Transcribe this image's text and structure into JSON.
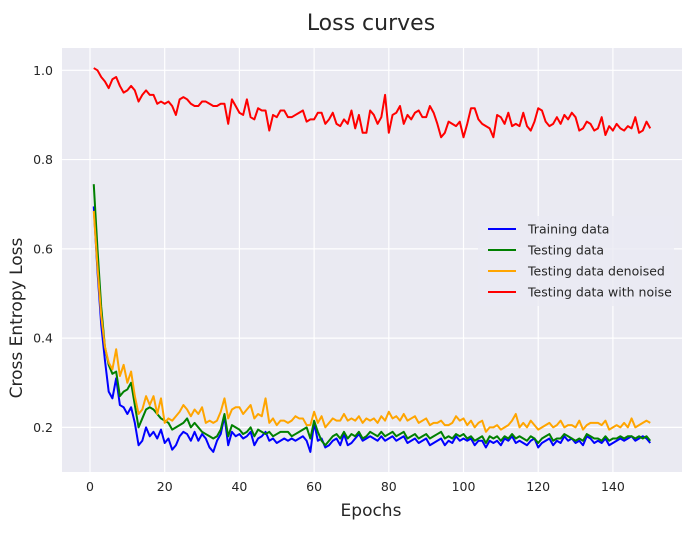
{
  "chart_data": {
    "type": "line",
    "title": "Loss curves",
    "xlabel": "Epochs",
    "ylabel": "Cross Entropy Loss",
    "xlim": [
      -7.5,
      158.5
    ],
    "ylim": [
      0.1,
      1.05
    ],
    "xticks": [
      0,
      20,
      40,
      60,
      80,
      100,
      120,
      140
    ],
    "yticks": [
      0.2,
      0.4,
      0.6,
      0.8,
      1.0
    ],
    "xtick_labels": [
      "0",
      "20",
      "40",
      "60",
      "80",
      "100",
      "120",
      "140"
    ],
    "ytick_labels": [
      "0.2",
      "0.4",
      "0.6",
      "0.8",
      "1.0"
    ],
    "grid": true,
    "legend_position": "center-right",
    "style": {
      "plot_bg": "#eaeaf2",
      "grid_color": "#ffffff"
    },
    "series": [
      {
        "name": "Training data",
        "color": "#0000ff",
        "x_start": 1,
        "x_step": 1,
        "values": [
          0.695,
          0.55,
          0.43,
          0.35,
          0.28,
          0.265,
          0.31,
          0.25,
          0.245,
          0.23,
          0.245,
          0.21,
          0.16,
          0.17,
          0.2,
          0.18,
          0.19,
          0.175,
          0.195,
          0.165,
          0.175,
          0.15,
          0.16,
          0.18,
          0.19,
          0.185,
          0.17,
          0.19,
          0.17,
          0.185,
          0.175,
          0.155,
          0.145,
          0.17,
          0.185,
          0.225,
          0.16,
          0.19,
          0.18,
          0.185,
          0.175,
          0.18,
          0.19,
          0.16,
          0.175,
          0.18,
          0.19,
          0.17,
          0.175,
          0.165,
          0.17,
          0.175,
          0.17,
          0.175,
          0.17,
          0.175,
          0.18,
          0.17,
          0.145,
          0.21,
          0.17,
          0.175,
          0.155,
          0.16,
          0.17,
          0.175,
          0.16,
          0.185,
          0.16,
          0.165,
          0.175,
          0.185,
          0.17,
          0.175,
          0.18,
          0.175,
          0.17,
          0.18,
          0.17,
          0.175,
          0.18,
          0.17,
          0.175,
          0.18,
          0.165,
          0.17,
          0.175,
          0.165,
          0.17,
          0.175,
          0.16,
          0.165,
          0.17,
          0.175,
          0.16,
          0.17,
          0.165,
          0.18,
          0.17,
          0.175,
          0.17,
          0.175,
          0.16,
          0.17,
          0.17,
          0.155,
          0.17,
          0.165,
          0.17,
          0.16,
          0.175,
          0.17,
          0.18,
          0.165,
          0.17,
          0.165,
          0.16,
          0.17,
          0.175,
          0.155,
          0.165,
          0.17,
          0.175,
          0.16,
          0.17,
          0.165,
          0.18,
          0.17,
          0.175,
          0.165,
          0.17,
          0.16,
          0.18,
          0.175,
          0.165,
          0.17,
          0.165,
          0.175,
          0.16,
          0.165,
          0.17,
          0.175,
          0.17,
          0.175,
          0.18,
          0.17,
          0.175,
          0.18,
          0.175,
          0.165
        ]
      },
      {
        "name": "Testing data",
        "color": "#008000",
        "x_start": 1,
        "x_step": 1,
        "values": [
          0.745,
          0.6,
          0.47,
          0.38,
          0.34,
          0.32,
          0.325,
          0.27,
          0.28,
          0.285,
          0.3,
          0.25,
          0.2,
          0.22,
          0.24,
          0.245,
          0.24,
          0.23,
          0.22,
          0.215,
          0.21,
          0.195,
          0.2,
          0.205,
          0.21,
          0.22,
          0.2,
          0.21,
          0.2,
          0.19,
          0.185,
          0.18,
          0.175,
          0.18,
          0.195,
          0.23,
          0.18,
          0.205,
          0.2,
          0.195,
          0.185,
          0.19,
          0.2,
          0.18,
          0.195,
          0.19,
          0.185,
          0.19,
          0.18,
          0.185,
          0.19,
          0.19,
          0.19,
          0.18,
          0.185,
          0.19,
          0.195,
          0.2,
          0.175,
          0.215,
          0.19,
          0.17,
          0.16,
          0.17,
          0.18,
          0.185,
          0.175,
          0.19,
          0.175,
          0.185,
          0.18,
          0.19,
          0.175,
          0.18,
          0.19,
          0.185,
          0.18,
          0.19,
          0.18,
          0.185,
          0.19,
          0.18,
          0.185,
          0.19,
          0.175,
          0.18,
          0.185,
          0.175,
          0.18,
          0.185,
          0.175,
          0.18,
          0.185,
          0.19,
          0.175,
          0.18,
          0.175,
          0.185,
          0.18,
          0.185,
          0.175,
          0.18,
          0.17,
          0.175,
          0.18,
          0.165,
          0.18,
          0.175,
          0.18,
          0.17,
          0.18,
          0.175,
          0.185,
          0.175,
          0.18,
          0.175,
          0.17,
          0.18,
          0.175,
          0.165,
          0.175,
          0.18,
          0.185,
          0.17,
          0.175,
          0.175,
          0.185,
          0.18,
          0.175,
          0.17,
          0.175,
          0.17,
          0.185,
          0.18,
          0.175,
          0.175,
          0.17,
          0.18,
          0.17,
          0.175,
          0.175,
          0.18,
          0.175,
          0.18,
          0.18,
          0.175,
          0.18,
          0.175,
          0.18,
          0.17
        ]
      },
      {
        "name": "Testing data denoised",
        "color": "#ffa500",
        "x_start": 1,
        "x_step": 1,
        "values": [
          0.685,
          0.56,
          0.45,
          0.38,
          0.345,
          0.33,
          0.375,
          0.315,
          0.34,
          0.3,
          0.325,
          0.27,
          0.23,
          0.24,
          0.27,
          0.25,
          0.27,
          0.23,
          0.265,
          0.21,
          0.22,
          0.215,
          0.225,
          0.235,
          0.25,
          0.24,
          0.225,
          0.24,
          0.23,
          0.245,
          0.21,
          0.215,
          0.21,
          0.215,
          0.235,
          0.265,
          0.22,
          0.24,
          0.245,
          0.245,
          0.23,
          0.24,
          0.25,
          0.22,
          0.23,
          0.225,
          0.265,
          0.21,
          0.22,
          0.205,
          0.215,
          0.215,
          0.21,
          0.215,
          0.225,
          0.22,
          0.22,
          0.205,
          0.205,
          0.235,
          0.21,
          0.225,
          0.2,
          0.21,
          0.22,
          0.215,
          0.215,
          0.23,
          0.215,
          0.22,
          0.215,
          0.225,
          0.21,
          0.22,
          0.215,
          0.22,
          0.21,
          0.225,
          0.215,
          0.235,
          0.22,
          0.225,
          0.215,
          0.23,
          0.215,
          0.22,
          0.225,
          0.21,
          0.215,
          0.22,
          0.205,
          0.21,
          0.21,
          0.215,
          0.205,
          0.205,
          0.21,
          0.225,
          0.215,
          0.22,
          0.205,
          0.215,
          0.2,
          0.21,
          0.215,
          0.19,
          0.2,
          0.2,
          0.205,
          0.195,
          0.2,
          0.205,
          0.215,
          0.23,
          0.2,
          0.21,
          0.2,
          0.215,
          0.205,
          0.195,
          0.2,
          0.205,
          0.21,
          0.2,
          0.205,
          0.215,
          0.2,
          0.205,
          0.205,
          0.2,
          0.215,
          0.195,
          0.205,
          0.21,
          0.21,
          0.21,
          0.205,
          0.215,
          0.195,
          0.2,
          0.205,
          0.2,
          0.21,
          0.2,
          0.22,
          0.2,
          0.205,
          0.21,
          0.215,
          0.21
        ]
      },
      {
        "name": "Testing data with noise",
        "color": "#ff0000",
        "x_start": 1,
        "x_step": 1,
        "values": [
          1.005,
          1.0,
          0.985,
          0.975,
          0.96,
          0.98,
          0.985,
          0.965,
          0.95,
          0.955,
          0.965,
          0.955,
          0.93,
          0.945,
          0.955,
          0.945,
          0.945,
          0.925,
          0.93,
          0.925,
          0.93,
          0.92,
          0.9,
          0.935,
          0.94,
          0.935,
          0.925,
          0.92,
          0.92,
          0.93,
          0.93,
          0.925,
          0.92,
          0.92,
          0.925,
          0.925,
          0.88,
          0.935,
          0.92,
          0.905,
          0.9,
          0.935,
          0.895,
          0.89,
          0.915,
          0.91,
          0.91,
          0.865,
          0.9,
          0.895,
          0.91,
          0.91,
          0.895,
          0.895,
          0.9,
          0.905,
          0.91,
          0.885,
          0.89,
          0.89,
          0.905,
          0.905,
          0.88,
          0.89,
          0.905,
          0.88,
          0.875,
          0.89,
          0.88,
          0.91,
          0.87,
          0.9,
          0.86,
          0.86,
          0.91,
          0.9,
          0.88,
          0.895,
          0.945,
          0.86,
          0.9,
          0.905,
          0.92,
          0.88,
          0.9,
          0.89,
          0.905,
          0.91,
          0.895,
          0.895,
          0.92,
          0.905,
          0.88,
          0.85,
          0.86,
          0.885,
          0.88,
          0.875,
          0.885,
          0.85,
          0.88,
          0.915,
          0.915,
          0.89,
          0.88,
          0.875,
          0.87,
          0.85,
          0.9,
          0.895,
          0.88,
          0.905,
          0.875,
          0.88,
          0.875,
          0.905,
          0.875,
          0.865,
          0.885,
          0.915,
          0.91,
          0.885,
          0.875,
          0.88,
          0.895,
          0.88,
          0.9,
          0.89,
          0.905,
          0.895,
          0.865,
          0.87,
          0.885,
          0.88,
          0.865,
          0.87,
          0.895,
          0.855,
          0.875,
          0.865,
          0.88,
          0.87,
          0.865,
          0.875,
          0.87,
          0.895,
          0.86,
          0.865,
          0.885,
          0.87
        ]
      }
    ]
  }
}
